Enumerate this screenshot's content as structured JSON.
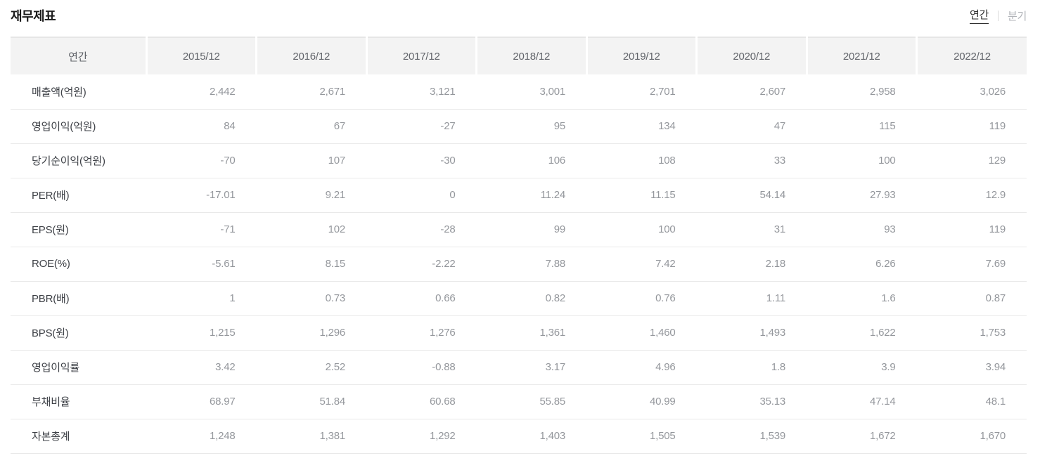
{
  "page": {
    "title": "재무제표"
  },
  "tabs": {
    "annual_label": "연간",
    "quarterly_label": "분기",
    "selected": "연간"
  },
  "table": {
    "corner_header": "연간",
    "columns": [
      "2015/12",
      "2016/12",
      "2017/12",
      "2018/12",
      "2019/12",
      "2020/12",
      "2021/12",
      "2022/12"
    ],
    "rows": [
      {
        "label": "매출액(억원)",
        "values": [
          "2,442",
          "2,671",
          "3,121",
          "3,001",
          "2,701",
          "2,607",
          "2,958",
          "3,026"
        ]
      },
      {
        "label": "영업이익(억원)",
        "values": [
          "84",
          "67",
          "-27",
          "95",
          "134",
          "47",
          "115",
          "119"
        ]
      },
      {
        "label": "당기순이익(억원)",
        "values": [
          "-70",
          "107",
          "-30",
          "106",
          "108",
          "33",
          "100",
          "129"
        ]
      },
      {
        "label": "PER(배)",
        "values": [
          "-17.01",
          "9.21",
          "0",
          "11.24",
          "11.15",
          "54.14",
          "27.93",
          "12.9"
        ]
      },
      {
        "label": "EPS(원)",
        "values": [
          "-71",
          "102",
          "-28",
          "99",
          "100",
          "31",
          "93",
          "119"
        ]
      },
      {
        "label": "ROE(%)",
        "values": [
          "-5.61",
          "8.15",
          "-2.22",
          "7.88",
          "7.42",
          "2.18",
          "6.26",
          "7.69"
        ]
      },
      {
        "label": "PBR(배)",
        "values": [
          "1",
          "0.73",
          "0.66",
          "0.82",
          "0.76",
          "1.11",
          "1.6",
          "0.87"
        ]
      },
      {
        "label": "BPS(원)",
        "values": [
          "1,215",
          "1,296",
          "1,276",
          "1,361",
          "1,460",
          "1,493",
          "1,622",
          "1,753"
        ]
      },
      {
        "label": "영업이익률",
        "values": [
          "3.42",
          "2.52",
          "-0.88",
          "3.17",
          "4.96",
          "1.8",
          "3.9",
          "3.94"
        ]
      },
      {
        "label": "부채비율",
        "values": [
          "68.97",
          "51.84",
          "60.68",
          "55.85",
          "40.99",
          "35.13",
          "47.14",
          "48.1"
        ]
      },
      {
        "label": "자본총계",
        "values": [
          "1,248",
          "1,381",
          "1,292",
          "1,403",
          "1,505",
          "1,539",
          "1,672",
          "1,670"
        ]
      }
    ]
  },
  "colors": {
    "header_bg": "#f3f3f3",
    "header_text": "#61646a",
    "row_label_text": "#3e4147",
    "value_text": "#94979c",
    "row_border": "#e9e9e9",
    "title_text": "#1b1b1b",
    "tab_selected": "#2b2b2b",
    "tab_unselected": "#b0b3b8"
  }
}
